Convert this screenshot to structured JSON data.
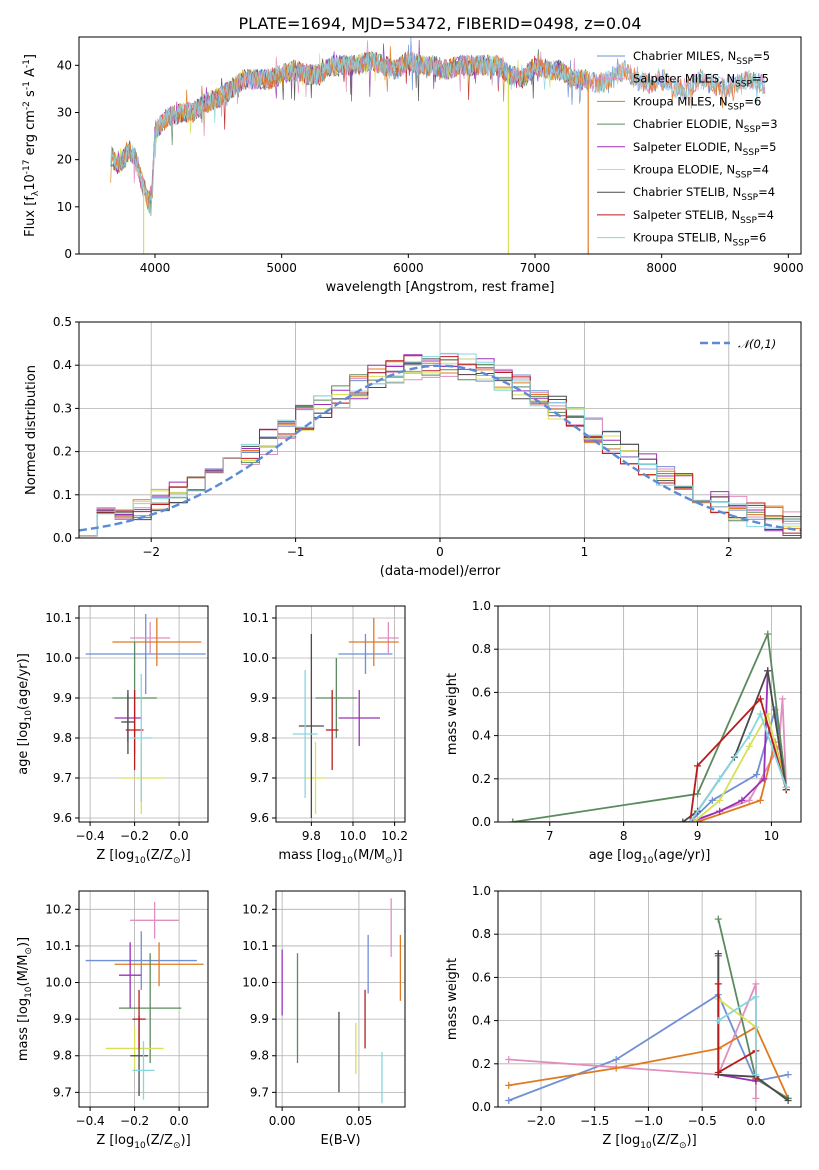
{
  "figure_title": "PLATE=1694, MJD=53472, FIBERID=0498, z=0.04",
  "legend_entries": [
    {
      "name": "Chabrier MILES, N$_{SSP}$=5",
      "color": "#6f8fd6"
    },
    {
      "name": "Salpeter MILES, N$_{SSP}$=5",
      "color": "#e08fbf"
    },
    {
      "name": "Kroupa MILES, N$_{SSP}$=6",
      "color": "#e07a20"
    },
    {
      "name": "Chabrier ELODIE, N$_{SSP}$=3",
      "color": "#5b8a5e"
    },
    {
      "name": "Salpeter ELODIE, N$_{SSP}$=5",
      "color": "#9b30b8"
    },
    {
      "name": "Kroupa ELODIE, N$_{SSP}$=4",
      "color": "#d8e05a"
    },
    {
      "name": "Chabrier STELIB, N$_{SSP}$=4",
      "color": "#4a4a4a"
    },
    {
      "name": "Salpeter STELIB, N$_{SSP}$=4",
      "color": "#b81c1c"
    },
    {
      "name": "Kroupa STELIB, N$_{SSP}$=6",
      "color": "#86d6e0"
    }
  ],
  "chart_data": [
    {
      "id": "spectrum",
      "type": "line",
      "xlabel": "wavelength [Angstrom, rest frame]",
      "ylabel": "Flux [f$_\\lambda$10$^{-17}$ erg cm$^{-2}$ s$^{-1}$ A$^{-1}$]",
      "xlim": [
        3400,
        9100
      ],
      "ylim": [
        0,
        46
      ],
      "xticks": [
        4000,
        5000,
        6000,
        7000,
        8000,
        9000
      ],
      "yticks": [
        0,
        10,
        20,
        30,
        40
      ],
      "continuum": [
        [
          3650,
          21
        ],
        [
          3700,
          19
        ],
        [
          3750,
          20
        ],
        [
          3800,
          22
        ],
        [
          3850,
          20
        ],
        [
          3900,
          15
        ],
        [
          3950,
          11
        ],
        [
          3980,
          14
        ],
        [
          4000,
          26
        ],
        [
          4100,
          29
        ],
        [
          4200,
          30
        ],
        [
          4300,
          30
        ],
        [
          4400,
          32
        ],
        [
          4500,
          33
        ],
        [
          4600,
          35
        ],
        [
          4700,
          37
        ],
        [
          4800,
          37
        ],
        [
          4900,
          37
        ],
        [
          5000,
          38
        ],
        [
          5100,
          39
        ],
        [
          5200,
          38
        ],
        [
          5300,
          38
        ],
        [
          5400,
          40
        ],
        [
          5500,
          40
        ],
        [
          5600,
          40
        ],
        [
          5700,
          41
        ],
        [
          5800,
          40
        ],
        [
          5900,
          39
        ],
        [
          6000,
          41
        ],
        [
          6100,
          40
        ],
        [
          6200,
          40
        ],
        [
          6300,
          39
        ],
        [
          6400,
          40
        ],
        [
          6500,
          40
        ],
        [
          6600,
          40
        ],
        [
          6700,
          40
        ],
        [
          6800,
          38
        ],
        [
          6900,
          37
        ],
        [
          7000,
          40
        ],
        [
          7100,
          39
        ],
        [
          7200,
          39
        ],
        [
          7300,
          37
        ],
        [
          7400,
          37
        ],
        [
          7500,
          36
        ],
        [
          7600,
          37
        ],
        [
          7700,
          39
        ],
        [
          7800,
          37
        ],
        [
          7900,
          36
        ],
        [
          8000,
          37
        ],
        [
          8100,
          35
        ],
        [
          8200,
          35
        ],
        [
          8300,
          37
        ],
        [
          8400,
          36
        ],
        [
          8500,
          35
        ],
        [
          8600,
          36
        ],
        [
          8700,
          37
        ],
        [
          8800,
          36
        ]
      ],
      "drop_lines": [
        {
          "x": 3910,
          "series": 5
        },
        {
          "x": 6790,
          "series": 5
        },
        {
          "x": 7420,
          "series": 2
        }
      ]
    },
    {
      "id": "residuals",
      "type": "histogram",
      "xlabel": "(data-model)/error",
      "ylabel": "Normed distribution",
      "xlim": [
        -2.5,
        2.5
      ],
      "ylim": [
        0,
        0.5
      ],
      "xticks": [
        -2,
        -1,
        0,
        1,
        2
      ],
      "yticks": [
        0.0,
        0.1,
        0.2,
        0.3,
        0.4,
        0.5
      ],
      "legend": "$\\mathcal{N}(0,1)$",
      "bins": 40
    },
    {
      "id": "age_vs_Z",
      "type": "errorbar",
      "xlabel": "Z [log$_{10}$(Z/Z$_\\odot$)]",
      "ylabel": "age  [log$_{10}$(age/yr)]",
      "xlim": [
        -0.45,
        0.13
      ],
      "ylim": [
        9.59,
        10.13
      ],
      "xticks": [
        -0.4,
        -0.2,
        0.0
      ],
      "yticks": [
        9.6,
        9.7,
        9.8,
        9.9,
        10.0,
        10.1
      ],
      "points": [
        {
          "s": 0,
          "x": -0.15,
          "xerr": 0.27,
          "y": 10.01,
          "yerr": 0.1
        },
        {
          "s": 1,
          "x": -0.13,
          "xerr": 0.09,
          "y": 10.05,
          "yerr": 0.04
        },
        {
          "s": 2,
          "x": -0.1,
          "xerr": 0.2,
          "y": 10.04,
          "yerr": 0.06
        },
        {
          "s": 3,
          "x": -0.2,
          "xerr": 0.1,
          "y": 9.9,
          "yerr": 0.14
        },
        {
          "s": 4,
          "x": -0.23,
          "xerr": 0.06,
          "y": 9.85,
          "yerr": 0.06
        },
        {
          "s": 5,
          "x": -0.17,
          "xerr": 0.1,
          "y": 9.7,
          "yerr": 0.09
        },
        {
          "s": 6,
          "x": -0.23,
          "xerr": 0.03,
          "y": 9.84,
          "yerr": 0.08
        },
        {
          "s": 7,
          "x": -0.2,
          "xerr": 0.04,
          "y": 9.82,
          "yerr": 0.1
        },
        {
          "s": 8,
          "x": -0.17,
          "xerr": 0.05,
          "y": 9.8,
          "yerr": 0.16
        }
      ]
    },
    {
      "id": "age_vs_mass",
      "type": "errorbar",
      "xlabel": "mass [log$_{10}$(M/M$_\\odot$)]",
      "xlim": [
        9.63,
        10.25
      ],
      "ylim": [
        9.59,
        10.13
      ],
      "xticks": [
        9.8,
        10.0,
        10.2
      ],
      "yticks": [
        9.6,
        9.7,
        9.8,
        9.9,
        10.0,
        10.1
      ],
      "points": [
        {
          "s": 0,
          "x": 10.06,
          "xerr": 0.13,
          "y": 10.01,
          "yerr": 0.05
        },
        {
          "s": 1,
          "x": 10.17,
          "xerr": 0.05,
          "y": 10.05,
          "yerr": 0.04
        },
        {
          "s": 2,
          "x": 10.1,
          "xerr": 0.12,
          "y": 10.04,
          "yerr": 0.06
        },
        {
          "s": 3,
          "x": 9.92,
          "xerr": 0.1,
          "y": 9.9,
          "yerr": 0.1
        },
        {
          "s": 4,
          "x": 10.03,
          "xerr": 0.1,
          "y": 9.85,
          "yerr": 0.07
        },
        {
          "s": 5,
          "x": 9.82,
          "xerr": 0.05,
          "y": 9.7,
          "yerr": 0.09
        },
        {
          "s": 6,
          "x": 9.8,
          "xerr": 0.06,
          "y": 9.83,
          "yerr": 0.23
        },
        {
          "s": 7,
          "x": 9.9,
          "xerr": 0.03,
          "y": 9.82,
          "yerr": 0.1
        },
        {
          "s": 8,
          "x": 9.77,
          "xerr": 0.06,
          "y": 9.81,
          "yerr": 0.16
        }
      ]
    },
    {
      "id": "mass_weight_vs_age",
      "type": "line",
      "xlabel": "age  [log$_{10}$(age/yr)]",
      "ylabel": "mass weight",
      "xlim": [
        6.3,
        10.4
      ],
      "ylim": [
        0,
        1
      ],
      "xticks": [
        7,
        8,
        9,
        10
      ],
      "yticks": [
        0.0,
        0.2,
        0.4,
        0.6,
        0.8,
        1.0
      ],
      "series": [
        {
          "s": 0,
          "points": [
            [
              8.9,
              0.0
            ],
            [
              9.2,
              0.1
            ],
            [
              9.8,
              0.22
            ],
            [
              10.05,
              0.52
            ],
            [
              10.2,
              0.15
            ]
          ]
        },
        {
          "s": 1,
          "points": [
            [
              8.95,
              0.0
            ],
            [
              9.3,
              0.05
            ],
            [
              9.7,
              0.1
            ],
            [
              10.1,
              0.35
            ],
            [
              10.15,
              0.57
            ],
            [
              10.2,
              0.16
            ]
          ]
        },
        {
          "s": 2,
          "points": [
            [
              6.5,
              0.0
            ],
            [
              9.0,
              0.0
            ],
            [
              9.85,
              0.1
            ],
            [
              10.05,
              0.37
            ],
            [
              10.2,
              0.16
            ]
          ]
        },
        {
          "s": 3,
          "points": [
            [
              6.5,
              0.0
            ],
            [
              9.0,
              0.13
            ],
            [
              9.95,
              0.87
            ],
            [
              10.2,
              0.16
            ]
          ]
        },
        {
          "s": 4,
          "points": [
            [
              8.9,
              0.0
            ],
            [
              9.3,
              0.05
            ],
            [
              9.6,
              0.1
            ],
            [
              9.9,
              0.2
            ],
            [
              9.95,
              0.7
            ]
          ]
        },
        {
          "s": 5,
          "points": [
            [
              8.95,
              0.0
            ],
            [
              9.3,
              0.1
            ],
            [
              9.7,
              0.35
            ],
            [
              9.95,
              0.5
            ],
            [
              10.2,
              0.15
            ]
          ]
        },
        {
          "s": 6,
          "points": [
            [
              8.8,
              0.0
            ],
            [
              9.0,
              0.05
            ],
            [
              9.5,
              0.3
            ],
            [
              9.95,
              0.7
            ],
            [
              10.2,
              0.15
            ]
          ]
        },
        {
          "s": 7,
          "points": [
            [
              8.9,
              0.0
            ],
            [
              9.0,
              0.26
            ],
            [
              9.85,
              0.57
            ],
            [
              10.2,
              0.15
            ]
          ]
        },
        {
          "s": 8,
          "points": [
            [
              8.9,
              0.0
            ],
            [
              9.3,
              0.2
            ],
            [
              9.7,
              0.4
            ],
            [
              9.85,
              0.5
            ],
            [
              10.2,
              0.16
            ]
          ]
        }
      ]
    },
    {
      "id": "mass_vs_Z",
      "type": "errorbar",
      "xlabel": "Z [log$_{10}$(Z/Z$_\\odot$)]",
      "ylabel": "mass [log$_{10}$(M/M$_\\odot$)]",
      "xlim": [
        -0.45,
        0.13
      ],
      "ylim": [
        9.66,
        10.25
      ],
      "xticks": [
        -0.4,
        -0.2,
        0.0
      ],
      "yticks": [
        9.7,
        9.8,
        9.9,
        10.0,
        10.1,
        10.2
      ],
      "points": [
        {
          "s": 0,
          "x": -0.17,
          "xerr": 0.25,
          "y": 10.06,
          "yerr": 0.08
        },
        {
          "s": 1,
          "x": -0.11,
          "xerr": 0.11,
          "y": 10.17,
          "yerr": 0.05
        },
        {
          "s": 2,
          "x": -0.09,
          "xerr": 0.2,
          "y": 10.05,
          "yerr": 0.06
        },
        {
          "s": 3,
          "x": -0.13,
          "xerr": 0.14,
          "y": 9.93,
          "yerr": 0.15
        },
        {
          "s": 4,
          "x": -0.22,
          "xerr": 0.05,
          "y": 10.02,
          "yerr": 0.09
        },
        {
          "s": 5,
          "x": -0.2,
          "xerr": 0.13,
          "y": 9.82,
          "yerr": 0.06
        },
        {
          "s": 6,
          "x": -0.18,
          "xerr": 0.04,
          "y": 9.8,
          "yerr": 0.11
        },
        {
          "s": 7,
          "x": -0.18,
          "xerr": 0.03,
          "y": 9.9,
          "yerr": 0.08
        },
        {
          "s": 8,
          "x": -0.16,
          "xerr": 0.05,
          "y": 9.76,
          "yerr": 0.08
        }
      ]
    },
    {
      "id": "mass_vs_EBV",
      "type": "errorbar",
      "xlabel": "E(B-V)",
      "xlim": [
        -0.004,
        0.08
      ],
      "ylim": [
        9.66,
        10.25
      ],
      "xticks": [
        0.0,
        0.05
      ],
      "yticks": [
        9.7,
        9.8,
        9.9,
        10.0,
        10.1,
        10.2
      ],
      "points": [
        {
          "s": 0,
          "x": 0.056,
          "y": 10.05,
          "yerr": 0.08
        },
        {
          "s": 1,
          "x": 0.071,
          "y": 10.15,
          "yerr": 0.08
        },
        {
          "s": 2,
          "x": 0.077,
          "y": 10.04,
          "yerr": 0.09
        },
        {
          "s": 3,
          "x": 0.01,
          "y": 9.93,
          "yerr": 0.15
        },
        {
          "s": 4,
          "x": 0.0,
          "y": 10.0,
          "yerr": 0.09
        },
        {
          "s": 5,
          "x": 0.048,
          "y": 9.82,
          "yerr": 0.07
        },
        {
          "s": 6,
          "x": 0.037,
          "y": 9.81,
          "yerr": 0.11
        },
        {
          "s": 7,
          "x": 0.054,
          "y": 9.9,
          "yerr": 0.08
        },
        {
          "s": 8,
          "x": 0.065,
          "y": 9.74,
          "yerr": 0.07
        }
      ]
    },
    {
      "id": "mass_weight_vs_Z",
      "type": "line",
      "xlabel": "Z [log$_{10}$(Z/Z$_\\odot$)]",
      "ylabel": "mass weight",
      "xlim": [
        -2.4,
        0.42
      ],
      "ylim": [
        0,
        1
      ],
      "xticks": [
        -2.0,
        -1.5,
        -1.0,
        -0.5,
        0.0
      ],
      "yticks": [
        0.0,
        0.2,
        0.4,
        0.6,
        0.8,
        1.0
      ],
      "series": [
        {
          "s": 0,
          "points": [
            [
              -2.3,
              0.03
            ],
            [
              -1.3,
              0.22
            ],
            [
              -0.35,
              0.52
            ],
            [
              0.0,
              0.12
            ],
            [
              0.3,
              0.15
            ]
          ]
        },
        {
          "s": 1,
          "points": [
            [
              -2.3,
              0.22
            ],
            [
              -0.35,
              0.15
            ],
            [
              0.0,
              0.57
            ],
            [
              0.0,
              0.04
            ]
          ]
        },
        {
          "s": 2,
          "points": [
            [
              -2.3,
              0.1
            ],
            [
              -1.3,
              0.18
            ],
            [
              -0.35,
              0.27
            ],
            [
              0.0,
              0.37
            ],
            [
              0.3,
              0.04
            ]
          ]
        },
        {
          "s": 3,
          "points": [
            [
              -0.35,
              0.87
            ],
            [
              0.0,
              0.13
            ],
            [
              0.3,
              0.04
            ]
          ]
        },
        {
          "s": 4,
          "points": [
            [
              -0.35,
              0.7
            ],
            [
              -0.35,
              0.15
            ],
            [
              0.0,
              0.12
            ]
          ]
        },
        {
          "s": 5,
          "points": [
            [
              -0.35,
              0.5
            ],
            [
              0.0,
              0.37
            ],
            [
              0.0,
              0.15
            ]
          ]
        },
        {
          "s": 6,
          "points": [
            [
              -0.35,
              0.71
            ],
            [
              -0.35,
              0.15
            ],
            [
              0.0,
              0.14
            ],
            [
              0.3,
              0.03
            ]
          ]
        },
        {
          "s": 7,
          "points": [
            [
              -0.35,
              0.57
            ],
            [
              -0.35,
              0.16
            ],
            [
              0.0,
              0.26
            ],
            [
              0.0,
              0.13
            ]
          ]
        },
        {
          "s": 8,
          "points": [
            [
              -0.35,
              0.4
            ],
            [
              0.0,
              0.51
            ],
            [
              0.0,
              0.15
            ]
          ]
        }
      ]
    }
  ]
}
